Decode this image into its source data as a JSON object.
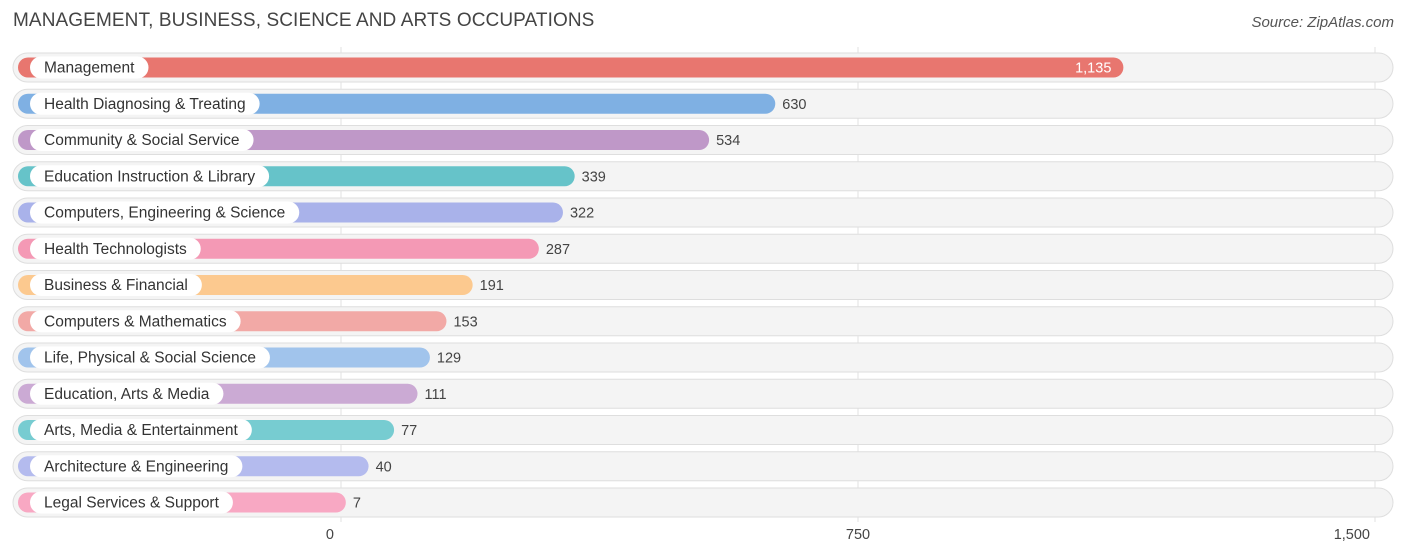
{
  "header": {
    "title": "MANAGEMENT, BUSINESS, SCIENCE AND ARTS OCCUPATIONS",
    "source": "Source: ZipAtlas.com"
  },
  "chart_data": {
    "type": "bar",
    "orientation": "horizontal",
    "title": "MANAGEMENT, BUSINESS, SCIENCE AND ARTS OCCUPATIONS",
    "categories": [
      "Management",
      "Health Diagnosing & Treating",
      "Community & Social Service",
      "Education Instruction & Library",
      "Computers, Engineering & Science",
      "Health Technologists",
      "Business & Financial",
      "Computers & Mathematics",
      "Life, Physical & Social Science",
      "Education, Arts & Media",
      "Arts, Media & Entertainment",
      "Architecture & Engineering",
      "Legal Services & Support"
    ],
    "values": [
      1135,
      630,
      534,
      339,
      322,
      287,
      191,
      153,
      129,
      111,
      77,
      40,
      7
    ],
    "value_labels": [
      "1,135",
      "630",
      "534",
      "339",
      "322",
      "287",
      "191",
      "153",
      "129",
      "111",
      "77",
      "40",
      "7"
    ],
    "colors": [
      "#e8766f",
      "#7fb0e3",
      "#bf98c8",
      "#66c3c9",
      "#a9b2ea",
      "#f499b5",
      "#fcc98f",
      "#f2a9a6",
      "#a1c4ec",
      "#cbaad4",
      "#77ccd1",
      "#b4bbee",
      "#f8a8c3"
    ],
    "xlim": [
      0,
      1500
    ],
    "xticks": [
      0,
      750,
      1500
    ],
    "xtick_labels": [
      "0",
      "750",
      "1,500"
    ],
    "grid": true,
    "legend": "none"
  }
}
